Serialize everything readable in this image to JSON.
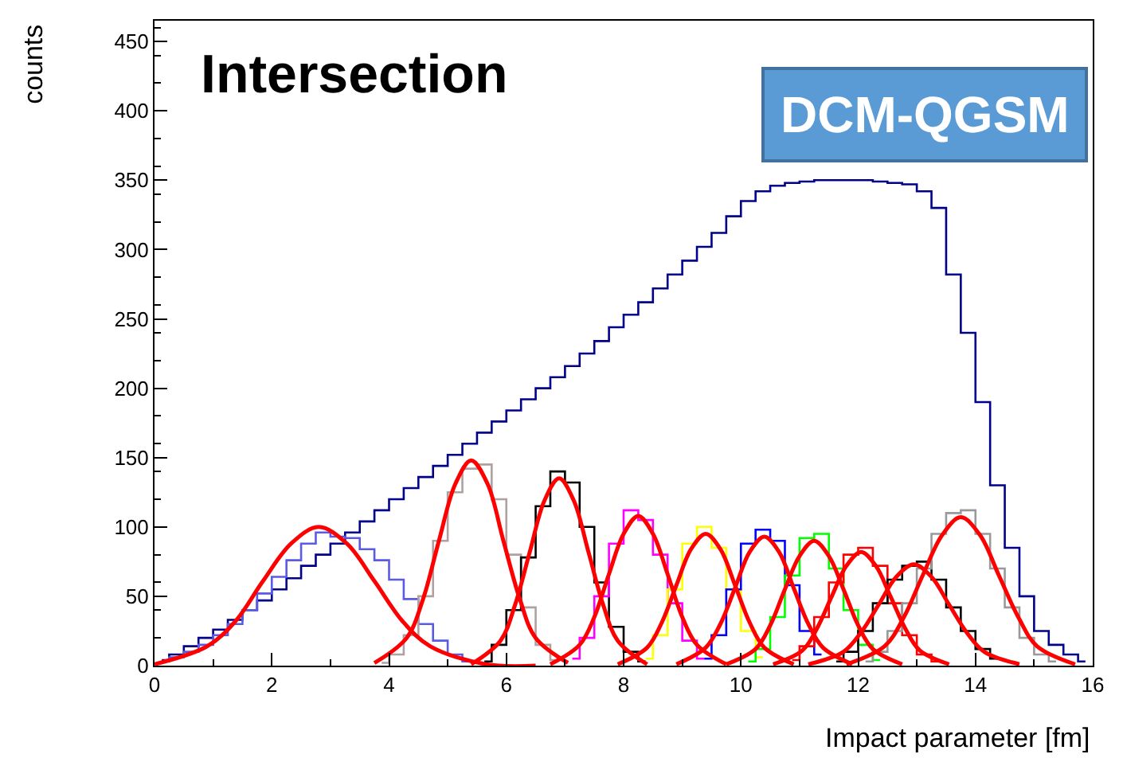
{
  "chart_data": {
    "type": "step",
    "xlabel": "Impact parameter [fm]",
    "ylabel": "counts",
    "annotations": [
      "Intersection",
      "DCM-QGSM"
    ],
    "xlim": [
      0,
      16
    ],
    "xticks": [
      0,
      2,
      4,
      6,
      8,
      10,
      12,
      14,
      16
    ],
    "ylim": [
      0,
      465
    ],
    "yticks": [
      0,
      50,
      100,
      150,
      200,
      250,
      300,
      350,
      400,
      450
    ],
    "grid": false,
    "marker": "none",
    "line_style": "solid",
    "series": [
      {
        "color": "#00008b",
        "x": [
          0.125,
          0.375,
          0.625,
          0.875,
          1.125,
          1.375,
          1.625,
          1.875,
          2.125,
          2.375,
          2.625,
          2.875,
          3.125,
          3.375,
          3.625,
          3.875,
          4.125,
          4.375,
          4.625,
          4.875,
          5.125,
          5.375,
          5.625,
          5.875,
          6.125,
          6.375,
          6.625,
          6.875,
          7.125,
          7.375,
          7.625,
          7.875,
          8.125,
          8.375,
          8.625,
          8.875,
          9.125,
          9.375,
          9.625,
          9.875,
          10.125,
          10.375,
          10.625,
          10.875,
          11.125,
          11.375,
          11.625,
          11.875,
          12.125,
          12.375,
          12.625,
          12.875,
          13.125,
          13.375,
          13.625,
          13.875,
          14.125,
          14.375,
          14.625,
          14.875,
          15.125,
          15.375,
          15.625,
          15.875
        ],
        "values": [
          4,
          8,
          14,
          20,
          26,
          33,
          40,
          47,
          55,
          63,
          72,
          80,
          88,
          96,
          104,
          112,
          120,
          128,
          136,
          144,
          152,
          160,
          168,
          176,
          184,
          192,
          200,
          208,
          216,
          225,
          234,
          244,
          253,
          262,
          272,
          282,
          292,
          302,
          312,
          324,
          335,
          342,
          346,
          348,
          349,
          350,
          350,
          350,
          350,
          349,
          348,
          347,
          342,
          330,
          282,
          240,
          190,
          130,
          85,
          50,
          25,
          15,
          8,
          3
        ]
      },
      {
        "color": "#5a5ae6",
        "x": [
          0.125,
          0.375,
          0.625,
          0.875,
          1.125,
          1.375,
          1.625,
          1.875,
          2.125,
          2.375,
          2.625,
          2.875,
          3.125,
          3.375,
          3.625,
          3.875,
          4.125,
          4.375,
          4.625,
          4.875,
          5.125,
          5.375
        ],
        "values": [
          3,
          6,
          10,
          15,
          22,
          30,
          40,
          52,
          64,
          76,
          88,
          96,
          93,
          92,
          84,
          76,
          62,
          48,
          30,
          18,
          8,
          3
        ]
      },
      {
        "color": "#b0a0a0",
        "x": [
          3.875,
          4.125,
          4.375,
          4.625,
          4.875,
          5.125,
          5.375,
          5.625,
          5.875,
          6.125,
          6.375,
          6.625,
          6.875
        ],
        "values": [
          2,
          8,
          22,
          50,
          90,
          125,
          142,
          145,
          120,
          80,
          42,
          15,
          4
        ]
      },
      {
        "color": "#000000",
        "x": [
          5.625,
          5.875,
          6.125,
          6.375,
          6.625,
          6.875,
          7.125,
          7.375,
          7.625,
          7.875,
          8.125,
          8.375
        ],
        "values": [
          3,
          15,
          40,
          78,
          115,
          140,
          132,
          100,
          60,
          28,
          10,
          3
        ]
      },
      {
        "color": "#ff00ff",
        "x": [
          7.125,
          7.375,
          7.625,
          7.875,
          8.125,
          8.375,
          8.625,
          8.875,
          9.125,
          9.375
        ],
        "values": [
          5,
          20,
          50,
          88,
          112,
          105,
          80,
          45,
          18,
          5
        ]
      },
      {
        "color": "#ffff00",
        "x": [
          8.375,
          8.625,
          8.875,
          9.125,
          9.375,
          9.625,
          9.875,
          10.125,
          10.375
        ],
        "values": [
          5,
          22,
          55,
          88,
          100,
          85,
          55,
          25,
          6
        ]
      },
      {
        "color": "#0000ff",
        "x": [
          9.375,
          9.625,
          9.875,
          10.125,
          10.375,
          10.625,
          10.875,
          11.125,
          11.375
        ],
        "values": [
          5,
          22,
          55,
          88,
          98,
          90,
          58,
          25,
          8
        ]
      },
      {
        "color": "#00ff00",
        "x": [
          10.125,
          10.375,
          10.625,
          10.875,
          11.125,
          11.375,
          11.625,
          11.875,
          12.125,
          12.375
        ],
        "values": [
          3,
          12,
          35,
          65,
          92,
          95,
          70,
          40,
          15,
          4
        ]
      },
      {
        "color": "#ff0000",
        "x": [
          10.875,
          11.125,
          11.375,
          11.625,
          11.875,
          12.125,
          12.375,
          12.625,
          12.875,
          13.125,
          13.375
        ],
        "values": [
          4,
          14,
          35,
          60,
          80,
          85,
          72,
          45,
          22,
          8,
          3
        ]
      },
      {
        "color": "#000000",
        "x": [
          11.625,
          11.875,
          12.125,
          12.375,
          12.625,
          12.875,
          13.125,
          13.375,
          13.625,
          13.875,
          14.125,
          14.375
        ],
        "values": [
          3,
          10,
          25,
          45,
          62,
          72,
          75,
          62,
          42,
          25,
          12,
          5
        ]
      },
      {
        "color": "#999999",
        "x": [
          12.125,
          12.375,
          12.625,
          12.875,
          13.125,
          13.375,
          13.625,
          13.875,
          14.125,
          14.375,
          14.625,
          14.875,
          15.125,
          15.375
        ],
        "values": [
          3,
          10,
          25,
          45,
          70,
          95,
          110,
          112,
          95,
          70,
          42,
          20,
          8,
          3
        ]
      },
      {
        "type": "line",
        "color": "#ff0000",
        "x": [
          0,
          0.9,
          1.38,
          1.85,
          2.33,
          2.8,
          3.28,
          3.75,
          4.23,
          4.7,
          5.65,
          6.5
        ],
        "values": [
          1,
          14,
          32,
          61,
          88,
          100,
          88,
          61,
          32,
          14,
          1,
          0
        ]
      },
      {
        "type": "line",
        "color": "#ff0000",
        "x": [
          3.75,
          4.3,
          4.58,
          4.85,
          5.13,
          5.4,
          5.68,
          5.95,
          6.23,
          6.5,
          7.05
        ],
        "values": [
          2,
          20,
          48,
          90,
          131,
          148,
          131,
          90,
          48,
          20,
          2
        ]
      },
      {
        "type": "line",
        "color": "#ff0000",
        "x": [
          5.4,
          5.9,
          6.15,
          6.4,
          6.65,
          6.9,
          7.15,
          7.4,
          7.65,
          7.9,
          8.4
        ],
        "values": [
          1,
          18,
          44,
          82,
          119,
          135,
          119,
          82,
          44,
          18,
          1
        ]
      },
      {
        "type": "line",
        "color": "#ff0000",
        "x": [
          6.75,
          7.25,
          7.5,
          7.75,
          8.0,
          8.25,
          8.5,
          8.75,
          9.0,
          9.25,
          9.75
        ],
        "values": [
          1,
          15,
          35,
          66,
          95,
          108,
          95,
          66,
          35,
          15,
          1
        ]
      },
      {
        "type": "line",
        "color": "#ff0000",
        "x": [
          7.9,
          8.4,
          8.65,
          8.9,
          9.15,
          9.4,
          9.65,
          9.9,
          10.15,
          10.4,
          10.9
        ],
        "values": [
          1,
          13,
          31,
          58,
          84,
          95,
          84,
          58,
          31,
          13,
          1
        ]
      },
      {
        "type": "line",
        "color": "#ff0000",
        "x": [
          8.9,
          9.4,
          9.65,
          9.9,
          10.15,
          10.4,
          10.65,
          10.9,
          11.15,
          11.4,
          11.9
        ],
        "values": [
          1,
          13,
          30,
          56,
          82,
          93,
          82,
          56,
          30,
          13,
          1
        ]
      },
      {
        "type": "line",
        "color": "#ff0000",
        "x": [
          9.75,
          10.25,
          10.5,
          10.75,
          11.0,
          11.25,
          11.5,
          11.75,
          12.0,
          12.25,
          12.75
        ],
        "values": [
          1,
          12,
          29,
          55,
          79,
          90,
          79,
          55,
          29,
          12,
          1
        ]
      },
      {
        "type": "line",
        "color": "#ff0000",
        "x": [
          10.55,
          11.05,
          11.3,
          11.55,
          11.8,
          12.05,
          12.3,
          12.55,
          12.8,
          13.05,
          13.55
        ],
        "values": [
          1,
          11,
          27,
          50,
          72,
          82,
          72,
          50,
          27,
          11,
          1
        ]
      },
      {
        "type": "line",
        "color": "#ff0000",
        "x": [
          11.15,
          11.75,
          12.05,
          12.35,
          12.65,
          12.95,
          13.25,
          13.55,
          13.85,
          14.15,
          14.75
        ],
        "values": [
          1,
          10,
          24,
          44,
          64,
          73,
          64,
          44,
          24,
          10,
          1
        ]
      },
      {
        "type": "line",
        "color": "#ff0000",
        "x": [
          11.8,
          12.45,
          12.78,
          13.1,
          13.43,
          13.75,
          14.08,
          14.4,
          14.73,
          15.05,
          15.7
        ],
        "values": [
          1,
          14,
          35,
          65,
          94,
          107,
          94,
          65,
          35,
          14,
          1
        ]
      }
    ]
  }
}
